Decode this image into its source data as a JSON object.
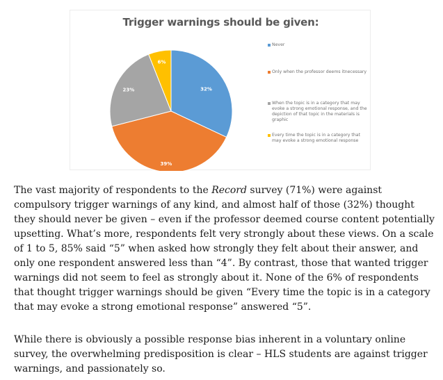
{
  "chart_data": {
    "type": "pie",
    "title": "Trigger warnings should be given:",
    "categories": [
      "Never",
      "Only when the professor deems itnecessary",
      "When the topic is in a category that may evoke a strong emotional response, and the depiction of that topic in the materials is graphic",
      "Every time the topic is in a category that may evoke a strong emotional response"
    ],
    "values": [
      32,
      39,
      23,
      6
    ],
    "labels": [
      "32%",
      "39%",
      "23%",
      "6%"
    ],
    "colors": [
      "#5b9bd5",
      "#ed7d31",
      "#a5a5a5",
      "#ffc000"
    ],
    "legend_position": "right",
    "start": "top",
    "direction": "clockwise"
  },
  "article": {
    "p1_before": "The vast majority of respondents to the ",
    "p1_em": "Record",
    "p1_after": " survey (71%) were against compulsory trigger warnings of any kind, and almost half of those (32%) thought they should never be given – even if the professor deemed course content potentially upsetting. What’s more, respondents felt very strongly about these views. On a scale of 1 to 5, 85% said “5” when asked how strongly they felt about their answer, and only one respondent answered less than “4”. By contrast, those that wanted trigger warnings did not seem to feel as strongly about it. None of the 6% of respondents that thought trigger warnings should be given “Every time the topic is in a category that may evoke a strong emotional response” answered “5”.",
    "p2": "While there is obviously a possible response bias inherent in a voluntary online survey, the overwhelming predisposition is clear – HLS students are against trigger warnings, and passionately so."
  }
}
